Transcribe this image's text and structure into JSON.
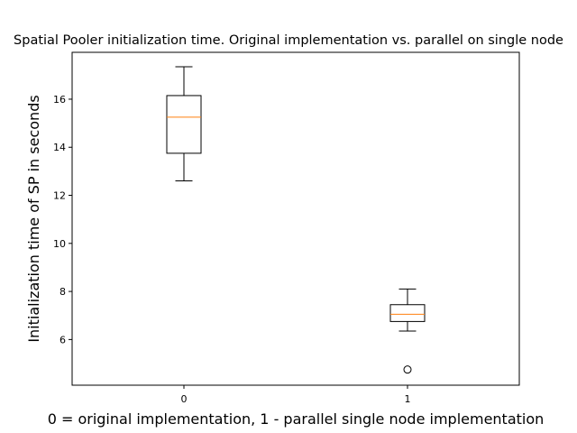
{
  "chart_data": {
    "type": "boxplot",
    "title": "Spatial Pooler initialization time. Original implementation vs. parallel on single node",
    "xlabel": "0 = original implementation, 1 - parallel single node implementation",
    "ylabel": "Initialization time of SP in seconds",
    "categories": [
      "0",
      "1"
    ],
    "xlim": [
      -0.5,
      1.5
    ],
    "ylim": [
      4.1,
      17.95
    ],
    "yticks": [
      6,
      8,
      10,
      12,
      14,
      16
    ],
    "ytick_labels": [
      "6",
      "8",
      "10",
      "12",
      "14",
      "16"
    ],
    "grid": false,
    "legend": "none",
    "boxes": [
      {
        "label": "0",
        "whisker_low": 12.6,
        "q1": 13.75,
        "median": 15.25,
        "q3": 16.15,
        "whisker_high": 17.35,
        "outliers": []
      },
      {
        "label": "1",
        "whisker_low": 6.35,
        "q1": 6.75,
        "median": 7.05,
        "q3": 7.45,
        "whisker_high": 8.1,
        "outliers": [
          4.75
        ]
      }
    ],
    "colors": {
      "box": "#000000",
      "median": "#ff7f0e",
      "axis": "#000000"
    }
  }
}
